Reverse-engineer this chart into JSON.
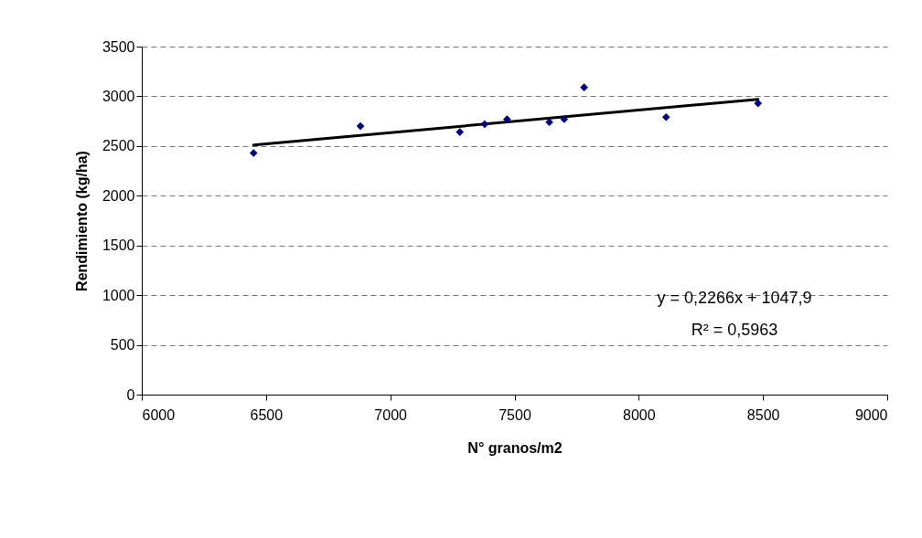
{
  "chart_data": {
    "type": "scatter",
    "xlabel": "N° granos/m2",
    "ylabel": "Rendimiento (kg/ha)",
    "xlim": [
      6000,
      9000
    ],
    "xticks": [
      6000,
      6500,
      7000,
      7500,
      8000,
      8500,
      9000
    ],
    "ylim": [
      0,
      3500
    ],
    "yticks": [
      0,
      500,
      1000,
      1500,
      2000,
      2500,
      3000,
      3500
    ],
    "grid": "y",
    "annotations": [
      "y = 0,2266x + 1047,9",
      "R² = 0,5963"
    ],
    "series": [
      {
        "marker": "diamond",
        "color": "#000080",
        "x": [
          6450,
          6880,
          7280,
          7380,
          7470,
          7640,
          7700,
          7780,
          8110,
          8480
        ],
        "values": [
          2430,
          2700,
          2640,
          2720,
          2770,
          2740,
          2770,
          3090,
          2790,
          2930
        ]
      },
      {
        "type": "line",
        "color": "#000000",
        "x": [
          6450,
          8480
        ],
        "values": [
          2510,
          2970
        ]
      }
    ]
  }
}
